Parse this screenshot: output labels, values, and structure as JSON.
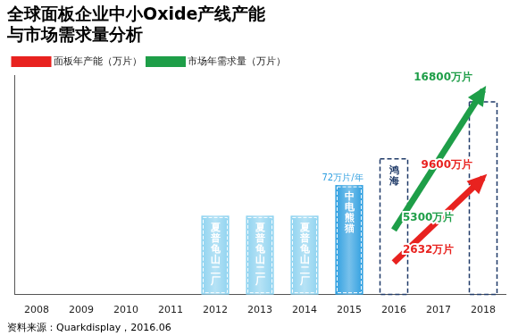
{
  "chart_data": {
    "type": "line",
    "title": [
      "全球面板企业中小Oxide产线产能",
      "与市场需求量分析"
    ],
    "categories": [
      "2008",
      "2009",
      "2010",
      "2011",
      "2012",
      "2013",
      "2014",
      "2015",
      "2016",
      "2017",
      "2018"
    ],
    "series": [
      {
        "name": "面板年产能（万片）",
        "color": "#e8221f",
        "values": [
          null,
          null,
          null,
          null,
          null,
          null,
          null,
          null,
          2632,
          null,
          9600
        ],
        "value_labels": [
          null,
          null,
          null,
          null,
          null,
          null,
          null,
          null,
          "2632万片",
          null,
          "9600万片"
        ]
      },
      {
        "name": "市场年需求量（万片）",
        "color": "#1e9e48",
        "values": [
          null,
          null,
          null,
          null,
          null,
          null,
          null,
          null,
          5300,
          null,
          16800
        ],
        "value_labels": [
          null,
          null,
          null,
          null,
          null,
          null,
          null,
          null,
          "5300万片",
          null,
          "16800万片"
        ]
      }
    ],
    "ylim": [
      0,
      18000
    ],
    "tick_labels": "x",
    "grid": false,
    "legend": "top-left",
    "data_labels": true,
    "boxes": [
      {
        "category": "2012",
        "label": "夏普龟山二厂",
        "color": "#8fd3f0",
        "line_style": "solid"
      },
      {
        "category": "2013",
        "label": "夏普龟山二厂",
        "color": "#8fd3f0",
        "line_style": "solid"
      },
      {
        "category": "2014",
        "label": "夏普龟山二厂",
        "color": "#8fd3f0",
        "line_style": "solid"
      },
      {
        "category": "2015",
        "label": "中电熊猫",
        "note": "72万片/年",
        "color": "#2f9fe0",
        "line_style": "solid"
      },
      {
        "category": "2016",
        "label": "鸿海",
        "color": "#1f3a68",
        "line_style": "dashed"
      },
      {
        "category": "2018",
        "color": "#1f3a68",
        "line_style": "dashed"
      }
    ],
    "source": "资料来源：Quarkdisplay，2016.06"
  }
}
